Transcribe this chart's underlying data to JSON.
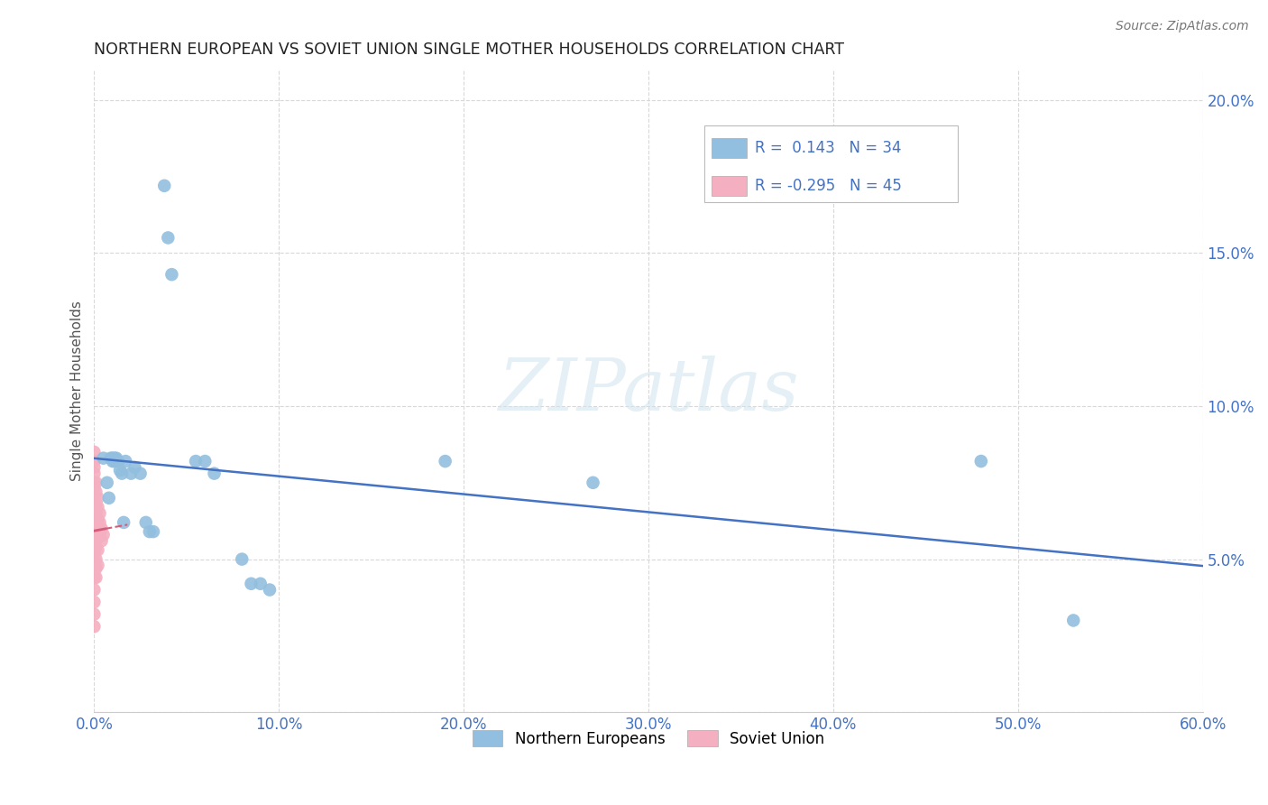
{
  "title": "NORTHERN EUROPEAN VS SOVIET UNION SINGLE MOTHER HOUSEHOLDS CORRELATION CHART",
  "source": "Source: ZipAtlas.com",
  "ylabel": "Single Mother Households",
  "xlim": [
    0.0,
    0.6
  ],
  "ylim": [
    0.0,
    0.21
  ],
  "xticks": [
    0.0,
    0.1,
    0.2,
    0.3,
    0.4,
    0.5,
    0.6
  ],
  "yticks": [
    0.0,
    0.05,
    0.1,
    0.15,
    0.2
  ],
  "xticklabels": [
    "0.0%",
    "10.0%",
    "20.0%",
    "30.0%",
    "40.0%",
    "50.0%",
    "60.0%"
  ],
  "yticklabels": [
    "",
    "5.0%",
    "10.0%",
    "15.0%",
    "20.0%"
  ],
  "legend_labels": [
    "Northern Europeans",
    "Soviet Union"
  ],
  "blue_color": "#92bfdf",
  "pink_color": "#f4afc0",
  "blue_line_color": "#4472c4",
  "pink_line_color": "#d45c7a",
  "blue_R": 0.143,
  "blue_N": 34,
  "pink_R": -0.295,
  "pink_N": 45,
  "blue_points": [
    [
      0.005,
      0.083
    ],
    [
      0.007,
      0.075
    ],
    [
      0.008,
      0.07
    ],
    [
      0.009,
      0.083
    ],
    [
      0.01,
      0.083
    ],
    [
      0.01,
      0.082
    ],
    [
      0.011,
      0.083
    ],
    [
      0.011,
      0.082
    ],
    [
      0.012,
      0.083
    ],
    [
      0.013,
      0.082
    ],
    [
      0.014,
      0.079
    ],
    [
      0.015,
      0.078
    ],
    [
      0.016,
      0.062
    ],
    [
      0.017,
      0.082
    ],
    [
      0.02,
      0.078
    ],
    [
      0.022,
      0.08
    ],
    [
      0.025,
      0.078
    ],
    [
      0.028,
      0.062
    ],
    [
      0.03,
      0.059
    ],
    [
      0.032,
      0.059
    ],
    [
      0.038,
      0.172
    ],
    [
      0.04,
      0.155
    ],
    [
      0.042,
      0.143
    ],
    [
      0.055,
      0.082
    ],
    [
      0.06,
      0.082
    ],
    [
      0.065,
      0.078
    ],
    [
      0.08,
      0.05
    ],
    [
      0.085,
      0.042
    ],
    [
      0.09,
      0.042
    ],
    [
      0.095,
      0.04
    ],
    [
      0.19,
      0.082
    ],
    [
      0.27,
      0.075
    ],
    [
      0.48,
      0.082
    ],
    [
      0.53,
      0.03
    ]
  ],
  "pink_points": [
    [
      0.0,
      0.085
    ],
    [
      0.0,
      0.082
    ],
    [
      0.0,
      0.08
    ],
    [
      0.0,
      0.078
    ],
    [
      0.0,
      0.075
    ],
    [
      0.0,
      0.073
    ],
    [
      0.0,
      0.07
    ],
    [
      0.0,
      0.068
    ],
    [
      0.0,
      0.065
    ],
    [
      0.0,
      0.062
    ],
    [
      0.0,
      0.06
    ],
    [
      0.0,
      0.058
    ],
    [
      0.0,
      0.055
    ],
    [
      0.0,
      0.052
    ],
    [
      0.0,
      0.05
    ],
    [
      0.0,
      0.048
    ],
    [
      0.0,
      0.044
    ],
    [
      0.0,
      0.04
    ],
    [
      0.0,
      0.036
    ],
    [
      0.0,
      0.032
    ],
    [
      0.0,
      0.028
    ],
    [
      0.001,
      0.075
    ],
    [
      0.001,
      0.072
    ],
    [
      0.001,
      0.068
    ],
    [
      0.001,
      0.065
    ],
    [
      0.001,
      0.062
    ],
    [
      0.001,
      0.06
    ],
    [
      0.001,
      0.057
    ],
    [
      0.001,
      0.054
    ],
    [
      0.001,
      0.05
    ],
    [
      0.001,
      0.047
    ],
    [
      0.001,
      0.044
    ],
    [
      0.002,
      0.07
    ],
    [
      0.002,
      0.067
    ],
    [
      0.002,
      0.063
    ],
    [
      0.002,
      0.06
    ],
    [
      0.002,
      0.057
    ],
    [
      0.002,
      0.053
    ],
    [
      0.002,
      0.048
    ],
    [
      0.003,
      0.065
    ],
    [
      0.003,
      0.062
    ],
    [
      0.003,
      0.058
    ],
    [
      0.004,
      0.06
    ],
    [
      0.004,
      0.056
    ],
    [
      0.005,
      0.058
    ]
  ],
  "watermark": "ZIPatlas",
  "background_color": "#ffffff",
  "grid_color": "#d8d8d8"
}
